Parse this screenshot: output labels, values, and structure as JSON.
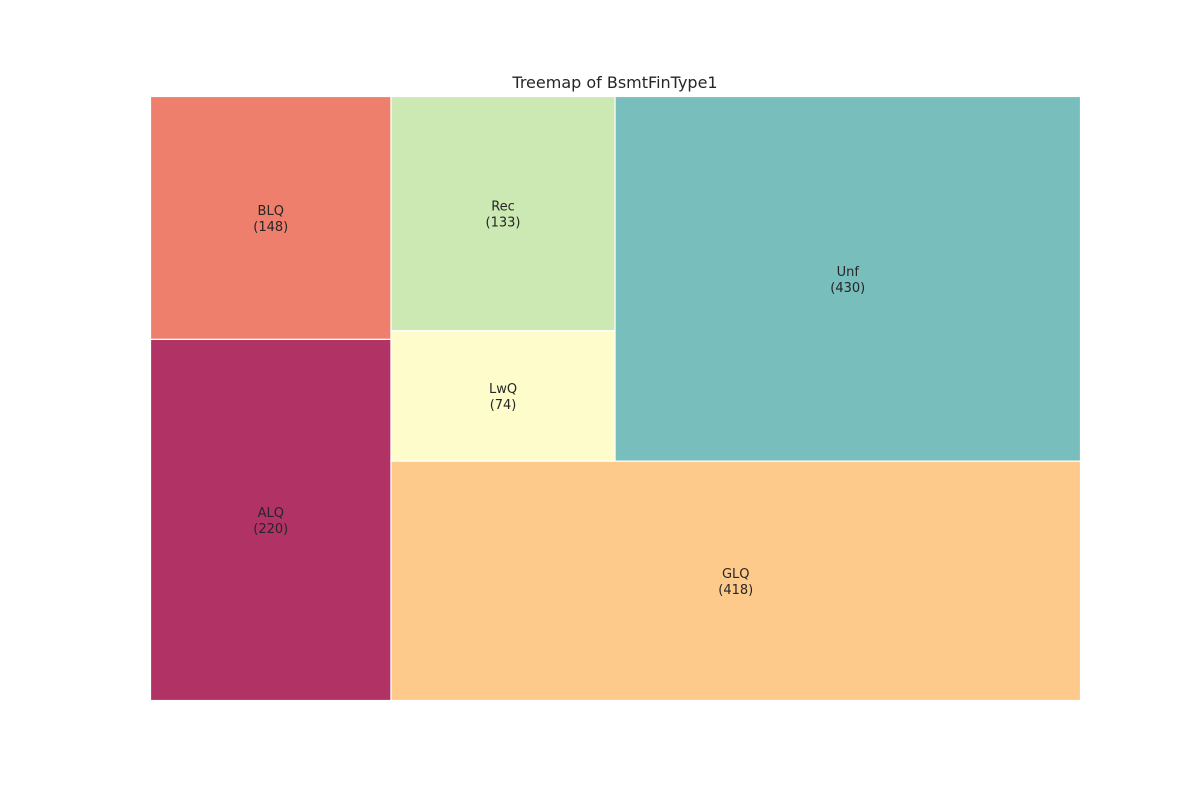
{
  "chart_data": {
    "type": "treemap",
    "title": "Treemap of BsmtFinType1",
    "items": [
      {
        "label": "BLQ",
        "value": 148,
        "value_text": "(148)",
        "color": "#ee7f6c"
      },
      {
        "label": "ALQ",
        "value": 220,
        "value_text": "(220)",
        "color": "#b13365"
      },
      {
        "label": "Rec",
        "value": 133,
        "value_text": "(133)",
        "color": "#cce9b3"
      },
      {
        "label": "LwQ",
        "value": 74,
        "value_text": "(74)",
        "color": "#fefccb"
      },
      {
        "label": "Unf",
        "value": 430,
        "value_text": "(430)",
        "color": "#77bebd"
      },
      {
        "label": "GLQ",
        "value": 418,
        "value_text": "(418)",
        "color": "#fdca8c"
      }
    ],
    "grid": false,
    "legend": "none"
  }
}
